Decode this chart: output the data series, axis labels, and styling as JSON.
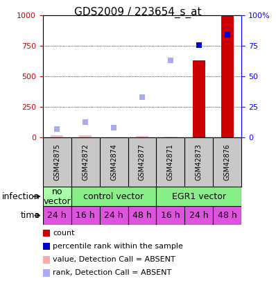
{
  "title": "GDS2009 / 223654_s_at",
  "samples": [
    "GSM42875",
    "GSM42872",
    "GSM42874",
    "GSM42877",
    "GSM42871",
    "GSM42873",
    "GSM42876"
  ],
  "count_values": [
    20,
    18,
    5,
    12,
    10,
    630,
    1000
  ],
  "count_absent": [
    true,
    true,
    true,
    true,
    true,
    false,
    false
  ],
  "rank_values": [
    7,
    13,
    8,
    33,
    63,
    76,
    84
  ],
  "rank_absent": [
    true,
    true,
    true,
    true,
    true,
    false,
    false
  ],
  "left_ylim": [
    0,
    1000
  ],
  "right_ylim": [
    0,
    100
  ],
  "left_yticks": [
    0,
    250,
    500,
    750,
    1000
  ],
  "right_yticks": [
    0,
    25,
    50,
    75,
    100
  ],
  "time_labels": [
    "24 h",
    "16 h",
    "24 h",
    "48 h",
    "16 h",
    "24 h",
    "48 h"
  ],
  "time_color": "#dd55dd",
  "sample_bg_color": "#c8c8c8",
  "legend_items": [
    {
      "color": "#cc0000",
      "label": "count"
    },
    {
      "color": "#0000cc",
      "label": "percentile rank within the sample"
    },
    {
      "color": "#ffaaaa",
      "label": "value, Detection Call = ABSENT"
    },
    {
      "color": "#aaaaff",
      "label": "rank, Detection Call = ABSENT"
    }
  ],
  "count_present_color": "#cc0000",
  "count_absent_color": "#ffbbbb",
  "rank_present_color": "#0000cc",
  "rank_absent_color": "#aaaaee",
  "title_fontsize": 11,
  "axis_tick_fontsize": 8,
  "label_fontsize": 9,
  "sample_fontsize": 7,
  "legend_fontsize": 8
}
